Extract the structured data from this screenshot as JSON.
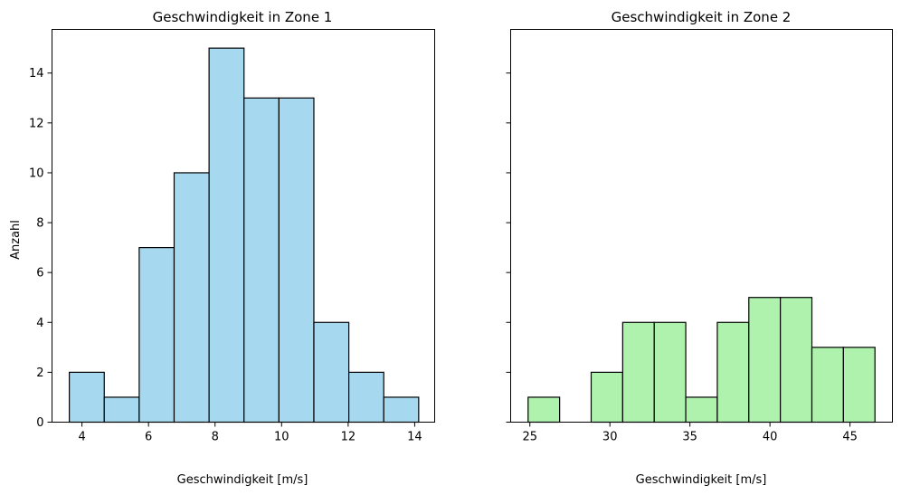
{
  "ylabel": "Anzahl",
  "chart_data": [
    {
      "type": "bar",
      "title": "Geschwindigkeit in Zone 1",
      "xlabel": "Geschwindigkeit [m/s]",
      "ylabel": "Anzahl",
      "color": "#a6d9ef",
      "bin_edges": [
        3.62,
        4.67,
        5.72,
        6.77,
        7.82,
        8.87,
        9.92,
        10.97,
        12.02,
        13.07,
        14.12
      ],
      "values": [
        2,
        1,
        7,
        10,
        15,
        13,
        13,
        4,
        2,
        1
      ],
      "xlim": [
        3.1,
        14.6
      ],
      "ylim": [
        0,
        15.75
      ],
      "xticks": [
        4,
        6,
        8,
        10,
        12,
        14
      ],
      "xtick_labels": [
        "4",
        "6",
        "8",
        "10",
        "12",
        "14"
      ],
      "yticks": [
        0,
        2,
        4,
        6,
        8,
        10,
        12,
        14
      ],
      "ytick_labels": [
        "0",
        "2",
        "4",
        "6",
        "8",
        "10",
        "12",
        "14"
      ],
      "grid": false
    },
    {
      "type": "bar",
      "title": "Geschwindigkeit in Zone 2",
      "xlabel": "Geschwindigkeit [m/s]",
      "ylabel": "",
      "color": "#aef2ad",
      "bin_edges": [
        24.89,
        26.86,
        28.83,
        30.8,
        32.77,
        34.74,
        36.71,
        38.68,
        40.65,
        42.62,
        44.59,
        46.56
      ],
      "values": [
        1,
        0,
        2,
        4,
        4,
        1,
        4,
        5,
        5,
        3,
        3
      ],
      "xlim": [
        23.8,
        47.65
      ],
      "ylim": [
        0,
        15.75
      ],
      "xticks": [
        25,
        30,
        35,
        40,
        45
      ],
      "xtick_labels": [
        "25",
        "30",
        "35",
        "40",
        "45"
      ],
      "yticks": [
        0,
        2,
        4,
        6,
        8,
        10,
        12,
        14
      ],
      "ytick_labels": [],
      "grid": false
    }
  ]
}
